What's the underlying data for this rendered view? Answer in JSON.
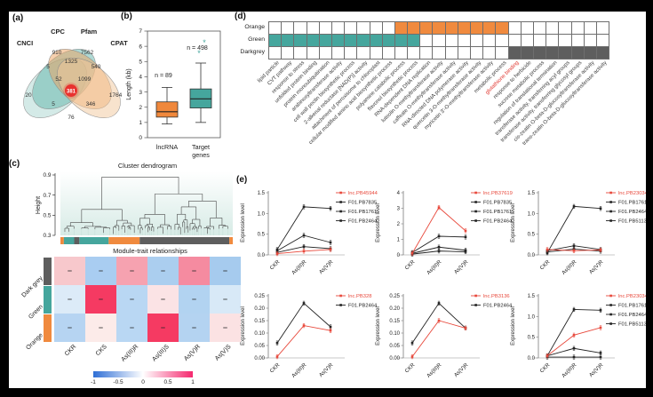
{
  "figure": {
    "panel_a": {
      "label": "(a)",
      "set_labels": [
        "CNCI",
        "CPC",
        "Pfam",
        "CPAT"
      ],
      "regions": {
        "only_cnci": "20",
        "only_cpc": "910",
        "only_pfam": "7562",
        "only_cpat": "1764",
        "cnci_cpc": "5",
        "cpc_pfam": "1325",
        "pfam_cpat": "540",
        "cnci_cpc_pfam": "52",
        "cpc_pfam_cpat": "1099",
        "all_four": "381",
        "cnci_cpc_cpat": "5",
        "cpc_pfam_cpat_lower": "346",
        "bottom_middle": "76"
      },
      "highlight_color": "#e8322e"
    },
    "panel_b": {
      "label": "(b)",
      "ylabel": "Length (kb)",
      "ymax": 7,
      "yticks": [
        "0",
        "1",
        "2",
        "3",
        "4",
        "5",
        "6",
        "7"
      ],
      "groups": [
        {
          "name": "lncRNA",
          "name_line2": "",
          "n_label": "n = 89",
          "color": "#f0883c",
          "whisker_low": 0.9,
          "q1": 1.35,
          "median": 1.7,
          "q3": 2.35,
          "whisker_high": 3.3,
          "outliers": []
        },
        {
          "name": "Target",
          "name_line2": "genes",
          "n_label": "n = 498",
          "color": "#45a69d",
          "whisker_low": 1.0,
          "q1": 1.95,
          "median": 2.55,
          "q3": 3.2,
          "whisker_high": 4.9,
          "outliers": [
            5.5,
            6.2
          ]
        }
      ]
    },
    "panel_c": {
      "label": "(c)",
      "dendrogram": {
        "title": "Cluster dendrogram",
        "ylabel": "Height",
        "yticks": [
          "0.9",
          "0.7",
          "0.5",
          "0.3"
        ],
        "module_bar": [
          {
            "color": "#f08a3e",
            "pct": 2
          },
          {
            "color": "#45a69d",
            "pct": 6
          },
          {
            "color": "#5e5e5e",
            "pct": 3
          },
          {
            "color": "#45a69d",
            "pct": 17
          },
          {
            "color": "#f08a3e",
            "pct": 18
          },
          {
            "color": "#5e5e5e",
            "pct": 52
          },
          {
            "color": "#f08a3e",
            "pct": 2
          }
        ]
      },
      "heatmap": {
        "title": "Module-trait relationships",
        "rows": [
          {
            "name": "Dark grey",
            "strip_color": "#5e5e5e"
          },
          {
            "name": "Green",
            "strip_color": "#45a69d"
          },
          {
            "name": "Orange",
            "strip_color": "#f08a3e"
          }
        ],
        "cols": [
          "CKR",
          "CKS",
          "As(III)R",
          "As(III)S",
          "As(V)R",
          "As(V)S"
        ],
        "cell_colors": [
          [
            "#f7c8cc",
            "#a9cdf1",
            "#f6a2b0",
            "#abceef",
            "#f58ba0",
            "#a6cbee"
          ],
          [
            "#dcebf8",
            "#f53a62",
            "#b9d7f3",
            "#fbe3e5",
            "#b2d3f1",
            "#d8e9f7"
          ],
          [
            "#b6d4f2",
            "#fcebe9",
            "#b9d7f3",
            "#f53a62",
            "#b4d3f1",
            "#fbe2e3"
          ]
        ],
        "colorbar": {
          "ticks": [
            "-1",
            "-0.5",
            "0",
            "0.5",
            "1"
          ],
          "gradient": [
            "#2f6fd6",
            "#ffffff",
            "#f5286e"
          ]
        }
      }
    },
    "panel_d": {
      "label": "(d)",
      "rows": [
        {
          "name": "Orange",
          "fill": "#f08a3e",
          "range": [
            10,
            18
          ]
        },
        {
          "name": "Green",
          "fill": "#45a69d",
          "range": [
            0,
            11
          ]
        },
        {
          "name": "Darkgrey",
          "fill": "#5e5e5e",
          "range": [
            19,
            26
          ]
        }
      ],
      "columns": [
        "lipid particle",
        "CVT pathway",
        "response to stress",
        "unfolded protein binding",
        "protein monoubiquitination",
        "arabinosyltransferase activity",
        "cell wall pectin biosynthetic process",
        "2-alkenal reductase [NAD(P)] activity",
        "attachment of peroxisome to chloroplast",
        "cellular modified amino acid biosynthetic process",
        "polyamine catabolic process",
        "flavonol biosynthetic process",
        "RNA-dependent DNA replication",
        "luteolin O-methyltransferase activity",
        "caffeate O-methyltransferase activity",
        "RNA-directed DNA polymerase activity",
        "quercetin 3-O-methyltransferase activity",
        "myricetin 3'-O-methyltransferase activity",
        "metabolic process",
        "glutathione binding",
        "response to herbicide",
        "sucrose metabolic process",
        "regulation of translational termination",
        "transferase activity, transferring acyl groups",
        "transferase activity, transferring glycosyl groups",
        "cis-zeatin O-beta-D-glucosyltransferase activity",
        "trans-zeatin O-beta-D-glucosyltransferase activity"
      ],
      "highlight_col": 19,
      "highlight_color": "#e0332c"
    },
    "panel_e": {
      "label": "(e)",
      "ylabel": "Expression level",
      "x_categories": [
        "CKR",
        "As(III)R",
        "As(V)R"
      ],
      "colors": {
        "lnc": "#e8483b",
        "target": "#222222"
      },
      "plots": [
        {
          "ymax": 1.5,
          "yticks": [
            {
              "v": 0,
              "t": "0.0"
            },
            {
              "v": 0.5,
              "t": "0.5"
            },
            {
              "v": 1,
              "t": "1.0"
            },
            {
              "v": 1.5,
              "t": "1.5"
            }
          ],
          "series": [
            {
              "name": "lnc.PB45944",
              "type": "lnc",
              "values": [
                0.03,
                0.09,
                0.13
              ]
            },
            {
              "name": "F01.PB7835",
              "type": "target",
              "values": [
                0.13,
                1.16,
                1.12
              ]
            },
            {
              "name": "F01.PB1761",
              "type": "target",
              "values": [
                0.1,
                0.47,
                0.3
              ]
            },
            {
              "name": "F01.PB2464",
              "type": "target",
              "values": [
                0.06,
                0.2,
                0.15
              ]
            }
          ]
        },
        {
          "ymax": 4,
          "yticks": [
            {
              "v": 0,
              "t": "0"
            },
            {
              "v": 1,
              "t": "1"
            },
            {
              "v": 2,
              "t": "2"
            },
            {
              "v": 3,
              "t": "3"
            },
            {
              "v": 4,
              "t": "4"
            }
          ],
          "series": [
            {
              "name": "lnc.PB37619",
              "type": "lnc",
              "values": [
                0.1,
                3.05,
                1.55
              ]
            },
            {
              "name": "F01.PB7835",
              "type": "target",
              "values": [
                0.15,
                1.2,
                1.15
              ]
            },
            {
              "name": "F01.PB1761",
              "type": "target",
              "values": [
                0.1,
                0.5,
                0.3
              ]
            },
            {
              "name": "F01.PB2464",
              "type": "target",
              "values": [
                0.05,
                0.25,
                0.2
              ]
            }
          ]
        },
        {
          "ymax": 1.5,
          "yticks": [
            {
              "v": 0,
              "t": "0.0"
            },
            {
              "v": 0.5,
              "t": "0.5"
            },
            {
              "v": 1,
              "t": "1.0"
            },
            {
              "v": 1.5,
              "t": "1.5"
            }
          ],
          "series": [
            {
              "name": "lnc.PB23034",
              "type": "lnc",
              "values": [
                0.13,
                0.1,
                0.12
              ]
            },
            {
              "name": "F01.PB1761",
              "type": "target",
              "values": [
                0.05,
                1.17,
                1.12
              ]
            },
            {
              "name": "F01.PB2464",
              "type": "target",
              "values": [
                0.1,
                0.22,
                0.13
              ]
            },
            {
              "name": "F01.PB51137",
              "type": "target",
              "values": [
                0.07,
                0.14,
                0.09
              ]
            }
          ]
        },
        {
          "ymax": 0.25,
          "yticks": [
            {
              "v": 0,
              "t": "0.00"
            },
            {
              "v": 0.05,
              "t": "0.05"
            },
            {
              "v": 0.1,
              "t": "0.10"
            },
            {
              "v": 0.15,
              "t": "0.15"
            },
            {
              "v": 0.2,
              "t": "0.20"
            },
            {
              "v": 0.25,
              "t": "0.25"
            }
          ],
          "series": [
            {
              "name": "lnc.PB328",
              "type": "lnc",
              "values": [
                0.005,
                0.13,
                0.11
              ]
            },
            {
              "name": "F01.PB2464",
              "type": "target",
              "values": [
                0.06,
                0.22,
                0.125
              ]
            }
          ]
        },
        {
          "ymax": 0.25,
          "yticks": [
            {
              "v": 0,
              "t": "0.00"
            },
            {
              "v": 0.05,
              "t": "0.05"
            },
            {
              "v": 0.1,
              "t": "0.10"
            },
            {
              "v": 0.15,
              "t": "0.15"
            },
            {
              "v": 0.2,
              "t": "0.20"
            },
            {
              "v": 0.25,
              "t": "0.25"
            }
          ],
          "series": [
            {
              "name": "lnc.PB3136",
              "type": "lnc",
              "values": [
                0.005,
                0.15,
                0.12
              ]
            },
            {
              "name": "F01.PB2464",
              "type": "target",
              "values": [
                0.06,
                0.22,
                0.12
              ]
            }
          ]
        },
        {
          "ymax": 1.5,
          "yticks": [
            {
              "v": 0,
              "t": "0.0"
            },
            {
              "v": 0.5,
              "t": "0.5"
            },
            {
              "v": 1,
              "t": "1.0"
            },
            {
              "v": 1.5,
              "t": "1.5"
            }
          ],
          "series": [
            {
              "name": "lnc.PB23034",
              "type": "lnc",
              "values": [
                0.05,
                0.55,
                0.73
              ]
            },
            {
              "name": "F01.PB1761",
              "type": "target",
              "values": [
                0.05,
                1.17,
                1.15
              ]
            },
            {
              "name": "F01.PB2464",
              "type": "target",
              "values": [
                0.05,
                0.23,
                0.12
              ]
            },
            {
              "name": "F01.PB51137",
              "type": "target",
              "values": [
                0.02,
                0.02,
                0.02
              ]
            }
          ]
        }
      ]
    }
  }
}
